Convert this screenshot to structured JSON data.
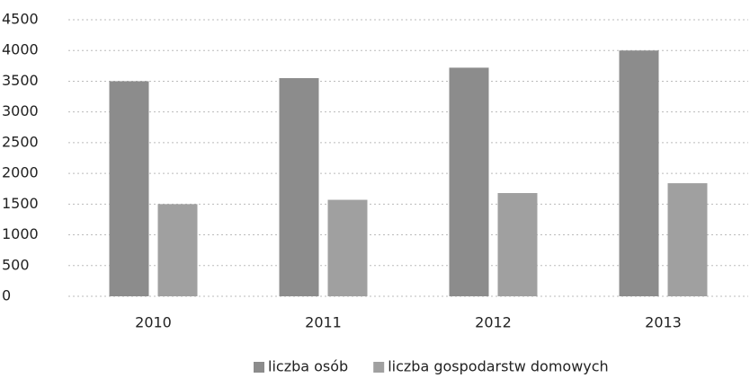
{
  "chart_data": {
    "type": "bar",
    "categories": [
      "2010",
      "2011",
      "2012",
      "2013"
    ],
    "series": [
      {
        "name": "liczba osób",
        "color": "#8c8c8c",
        "values": [
          3500,
          3550,
          3720,
          4000
        ]
      },
      {
        "name": "liczba gospodarstw domowych",
        "color": "#a0a0a0",
        "values": [
          1500,
          1570,
          1680,
          1840
        ]
      }
    ],
    "ylim": [
      0,
      4500
    ],
    "yticks": [
      0,
      500,
      1000,
      1500,
      2000,
      2500,
      3000,
      3500,
      4000,
      4500
    ],
    "grid": true,
    "legend": "bottom"
  }
}
